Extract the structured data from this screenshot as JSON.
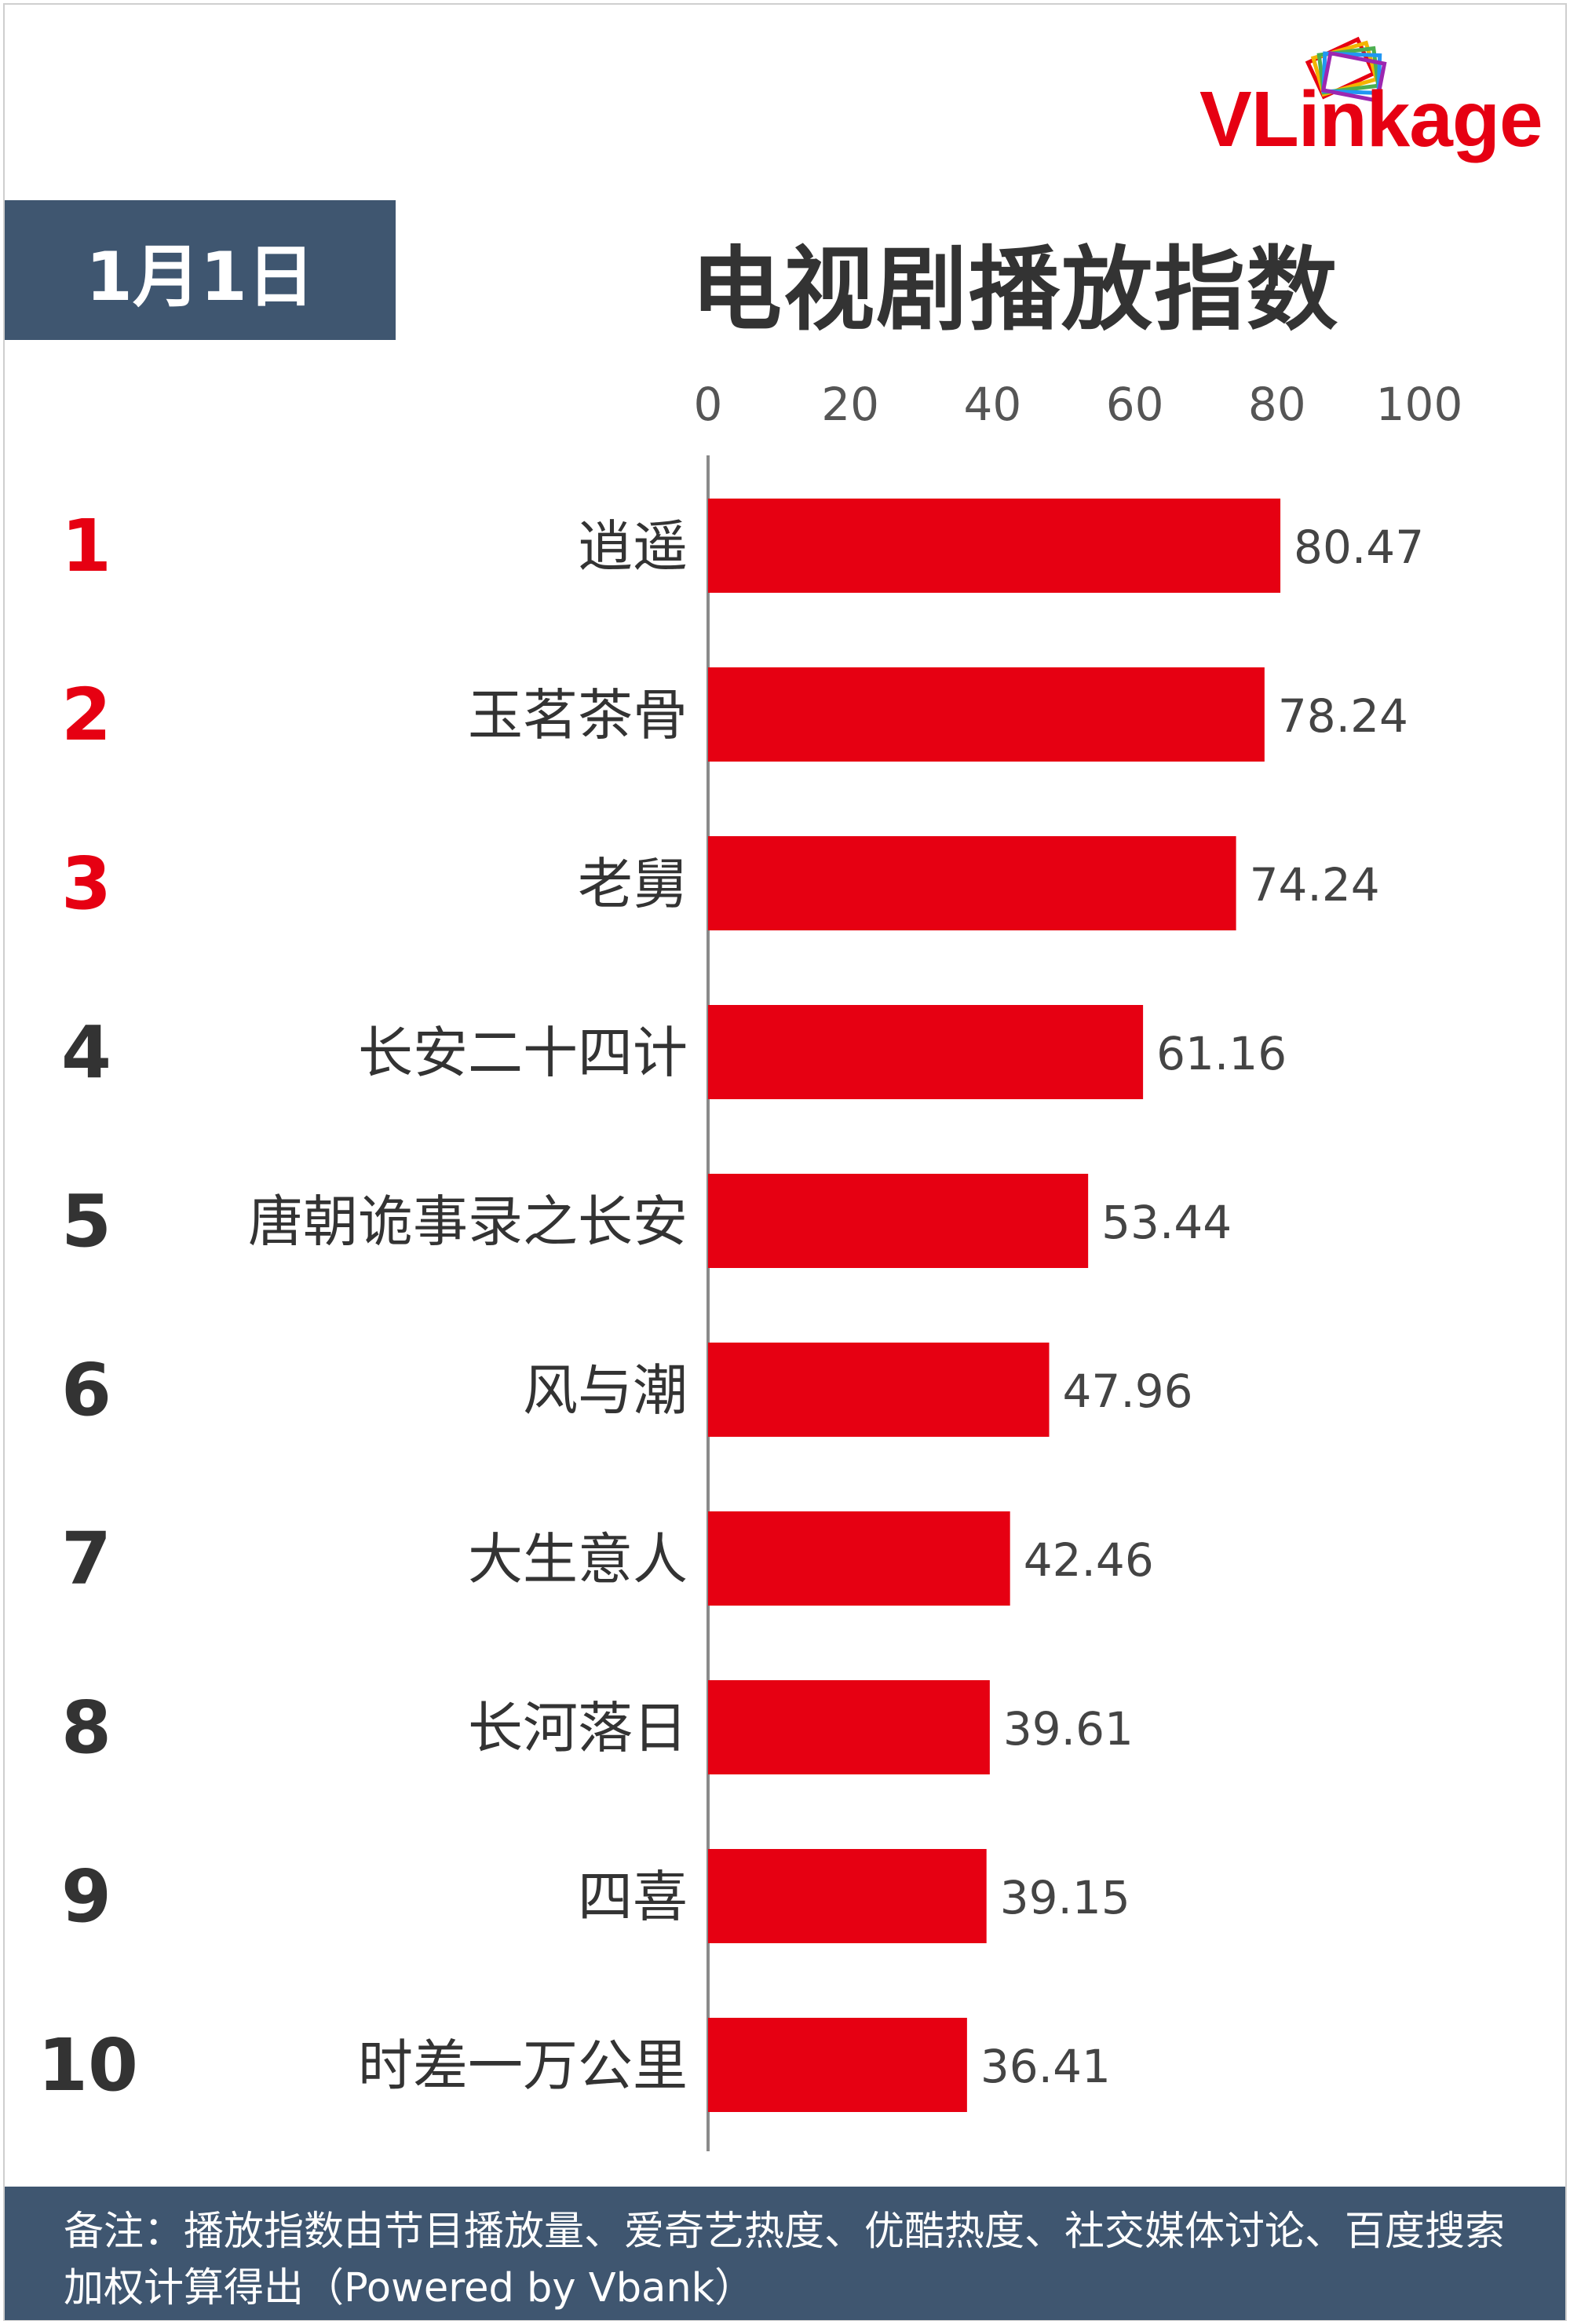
{
  "brand": {
    "logo_text": "VLinkage",
    "logo_colors": [
      "#e60012",
      "#f4b400",
      "#4caf50",
      "#2196f3",
      "#9c27b0"
    ]
  },
  "header": {
    "date": "1月1日",
    "title": "电视剧播放指数"
  },
  "chart_data": {
    "type": "bar",
    "orientation": "horizontal",
    "title": "电视剧播放指数",
    "xlim": [
      0,
      100
    ],
    "x_ticks": [
      "0",
      "20",
      "40",
      "60",
      "80",
      "100"
    ],
    "axis_position": "top",
    "grid": false,
    "ranks": [
      "1",
      "2",
      "3",
      "4",
      "5",
      "6",
      "7",
      "8",
      "9",
      "10"
    ],
    "categories": [
      "逍遥",
      "玉茗茶骨",
      "老舅",
      "长安二十四计",
      "唐朝诡事录之长安",
      "风与潮",
      "大生意人",
      "长河落日",
      "四喜",
      "时差一万公里"
    ],
    "values": [
      80.47,
      78.24,
      74.24,
      61.16,
      53.44,
      47.96,
      42.46,
      39.61,
      39.15,
      36.41
    ],
    "value_labels": [
      "80.47",
      "78.24",
      "74.24",
      "61.16",
      "53.44",
      "47.96",
      "42.46",
      "39.61",
      "39.15",
      "36.41"
    ],
    "bar_color": "#e60012",
    "top_rank_color": "#e60012",
    "rank_color": "#333333"
  },
  "footer": {
    "note": "备注：播放指数由节目播放量、爱奇艺热度、优酷热度、社交媒体讨论、百度搜索加权计算得出（Powered by Vbank）"
  }
}
